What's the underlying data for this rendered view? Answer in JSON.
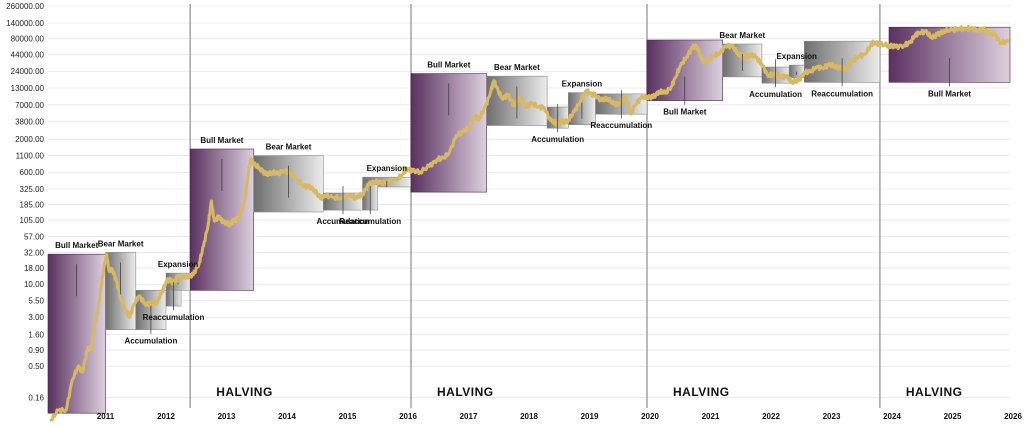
{
  "colors": {
    "bull": "#5a3060",
    "bull_fade": "#d7c8d8",
    "gray": "#7a7a7a",
    "gray_fade": "#e9e9e9",
    "price": "#d8b862",
    "halving_line": "#a8a8a8",
    "grid": "#dedede"
  },
  "chart_data": {
    "type": "line",
    "title": "",
    "xlabel": "",
    "ylabel": "",
    "y_scale": "log",
    "x_range": [
      2010.55,
      2026.45
    ],
    "ylim": [
      0.07,
      280000
    ],
    "y_ticks": [
      "260000.00",
      "140000.00",
      "80000.00",
      "44000.00",
      "24000.00",
      "13000.00",
      "7000.00",
      "3800.00",
      "2000.00",
      "1100.00",
      "600.00",
      "325.00",
      "185.00",
      "105.00",
      "57.00",
      "32.00",
      "18.00",
      "10.00",
      "5.50",
      "3.00",
      "1.60",
      "0.90",
      "0.50",
      "0.16"
    ],
    "x_ticks": [
      "2011",
      "2012",
      "2013",
      "2014",
      "2015",
      "2016",
      "2017",
      "2018",
      "2019",
      "2020",
      "2021",
      "2022",
      "2023",
      "2024",
      "2025",
      "2026"
    ],
    "halvings": [
      {
        "x": 2012.9,
        "label": "HALVING"
      },
      {
        "x": 2016.55,
        "label": "HALVING"
      },
      {
        "x": 2020.45,
        "label": "HALVING"
      },
      {
        "x": 2024.3,
        "label": "HALVING"
      }
    ],
    "phases": [
      {
        "label": "Bull Market",
        "type": "bull",
        "x0": 2010.55,
        "x1": 2011.5,
        "y0": 0.09,
        "y1": 30,
        "label_pos": "top"
      },
      {
        "label": "Bear Market",
        "type": "gray",
        "x0": 2011.5,
        "x1": 2012.0,
        "y0": 1.9,
        "y1": 32,
        "label_pos": "top"
      },
      {
        "label": "Accumulation",
        "type": "gray",
        "x0": 2012.0,
        "x1": 2012.5,
        "y0": 1.9,
        "y1": 8,
        "label_pos": "bottom"
      },
      {
        "label": "Reaccumulation",
        "type": "gray",
        "x0": 2012.5,
        "x1": 2012.75,
        "y0": 4.5,
        "y1": 11,
        "label_pos": "bottom"
      },
      {
        "label": "Expansion",
        "type": "gray",
        "x0": 2012.5,
        "x1": 2012.9,
        "y0": 8,
        "y1": 15,
        "label_pos": "top"
      },
      {
        "label": "Bull Market",
        "type": "bull",
        "x0": 2012.9,
        "x1": 2013.95,
        "y0": 8,
        "y1": 1400,
        "label_pos": "top"
      },
      {
        "label": "Bear Market",
        "type": "gray",
        "x0": 2013.95,
        "x1": 2015.1,
        "y0": 140,
        "y1": 1100,
        "label_pos": "top"
      },
      {
        "label": "Accumulation",
        "type": "gray",
        "x0": 2015.1,
        "x1": 2015.75,
        "y0": 150,
        "y1": 280,
        "label_pos": "bottom"
      },
      {
        "label": "Expansion",
        "type": "gray",
        "x0": 2015.75,
        "x1": 2016.55,
        "y0": 350,
        "y1": 500,
        "label_pos": "top"
      },
      {
        "label": "Reaccumulation",
        "type": "gray",
        "x0": 2015.75,
        "x1": 2016.0,
        "y0": 150,
        "y1": 380,
        "label_pos": "bottom"
      },
      {
        "label": "Bull Market",
        "type": "bull",
        "x0": 2016.55,
        "x1": 2017.8,
        "y0": 290,
        "y1": 22000,
        "label_pos": "top"
      },
      {
        "label": "Bear Market",
        "type": "gray",
        "x0": 2017.8,
        "x1": 2018.8,
        "y0": 3300,
        "y1": 20000,
        "label_pos": "top"
      },
      {
        "label": "Accumulation",
        "type": "gray",
        "x0": 2018.8,
        "x1": 2019.15,
        "y0": 3000,
        "y1": 6500,
        "label_pos": "bottom"
      },
      {
        "label": "Expansion",
        "type": "gray",
        "x0": 2019.15,
        "x1": 2019.6,
        "y0": 3400,
        "y1": 11000,
        "label_pos": "top"
      },
      {
        "label": "Reaccumulation",
        "type": "gray",
        "x0": 2019.6,
        "x1": 2020.45,
        "y0": 5000,
        "y1": 10500,
        "label_pos": "bottom"
      },
      {
        "label": "Bull Market",
        "type": "bull",
        "x0": 2020.45,
        "x1": 2021.7,
        "y0": 8200,
        "y1": 75000,
        "label_pos": "bottom"
      },
      {
        "label": "Bear Market",
        "type": "gray",
        "x0": 2021.7,
        "x1": 2022.35,
        "y0": 19500,
        "y1": 65000,
        "label_pos": "top"
      },
      {
        "label": "Accumulation",
        "type": "gray",
        "x0": 2022.35,
        "x1": 2022.8,
        "y0": 15500,
        "y1": 28000,
        "label_pos": "bottom"
      },
      {
        "label": "Expansion",
        "type": "gray",
        "x0": 2022.8,
        "x1": 2023.05,
        "y0": 19000,
        "y1": 30000,
        "label_pos": "top"
      },
      {
        "label": "Reaccumulation",
        "type": "gray",
        "x0": 2023.05,
        "x1": 2024.3,
        "y0": 16000,
        "y1": 72000,
        "label_pos": "bottom"
      },
      {
        "label": "Bull Market",
        "type": "bull",
        "x0": 2024.45,
        "x1": 2026.45,
        "y0": 16000,
        "y1": 120000,
        "label_pos": "bottom"
      }
    ],
    "series": [
      {
        "values": [
          [
            2010.6,
            0.07
          ],
          [
            2010.72,
            0.1
          ],
          [
            2010.85,
            0.1
          ],
          [
            2010.95,
            0.3
          ],
          [
            2011.05,
            0.5
          ],
          [
            2011.12,
            0.4
          ],
          [
            2011.2,
            0.9
          ],
          [
            2011.27,
            1.0
          ],
          [
            2011.33,
            2.5
          ],
          [
            2011.38,
            4
          ],
          [
            2011.42,
            8
          ],
          [
            2011.47,
            18
          ],
          [
            2011.52,
            30
          ],
          [
            2011.56,
            16
          ],
          [
            2011.62,
            17
          ],
          [
            2011.68,
            11
          ],
          [
            2011.75,
            6
          ],
          [
            2011.82,
            4
          ],
          [
            2011.9,
            3
          ],
          [
            2011.97,
            4.8
          ],
          [
            2012.05,
            6.5
          ],
          [
            2012.15,
            5
          ],
          [
            2012.25,
            4.8
          ],
          [
            2012.35,
            5.2
          ],
          [
            2012.42,
            7
          ],
          [
            2012.5,
            11
          ],
          [
            2012.58,
            12
          ],
          [
            2012.62,
            10
          ],
          [
            2012.7,
            14
          ],
          [
            2012.78,
            12.5
          ],
          [
            2012.86,
            13.5
          ],
          [
            2012.95,
            14
          ],
          [
            2013.05,
            22
          ],
          [
            2013.12,
            40
          ],
          [
            2013.2,
            90
          ],
          [
            2013.25,
            210
          ],
          [
            2013.3,
            100
          ],
          [
            2013.38,
            120
          ],
          [
            2013.45,
            95
          ],
          [
            2013.55,
            90
          ],
          [
            2013.62,
            100
          ],
          [
            2013.72,
            120
          ],
          [
            2013.8,
            200
          ],
          [
            2013.86,
            600
          ],
          [
            2013.9,
            1000
          ],
          [
            2013.95,
            800
          ],
          [
            2014.05,
            700
          ],
          [
            2014.15,
            550
          ],
          [
            2014.25,
            600
          ],
          [
            2014.35,
            560
          ],
          [
            2014.45,
            640
          ],
          [
            2014.55,
            580
          ],
          [
            2014.65,
            480
          ],
          [
            2014.75,
            380
          ],
          [
            2014.85,
            350
          ],
          [
            2014.95,
            320
          ],
          [
            2015.05,
            230
          ],
          [
            2015.12,
            260
          ],
          [
            2015.25,
            240
          ],
          [
            2015.4,
            230
          ],
          [
            2015.55,
            260
          ],
          [
            2015.65,
            230
          ],
          [
            2015.75,
            270
          ],
          [
            2015.85,
            380
          ],
          [
            2015.95,
            430
          ],
          [
            2016.05,
            400
          ],
          [
            2016.15,
            420
          ],
          [
            2016.3,
            450
          ],
          [
            2016.42,
            560
          ],
          [
            2016.48,
            700
          ],
          [
            2016.58,
            620
          ],
          [
            2016.7,
            610
          ],
          [
            2016.85,
            740
          ],
          [
            2016.98,
            960
          ],
          [
            2017.08,
            1000
          ],
          [
            2017.18,
            1200
          ],
          [
            2017.3,
            2300
          ],
          [
            2017.4,
            2600
          ],
          [
            2017.5,
            3000
          ],
          [
            2017.6,
            4500
          ],
          [
            2017.68,
            4300
          ],
          [
            2017.78,
            6500
          ],
          [
            2017.86,
            11000
          ],
          [
            2017.92,
            17000
          ],
          [
            2017.96,
            13500
          ],
          [
            2018.05,
            9000
          ],
          [
            2018.15,
            10000
          ],
          [
            2018.25,
            7000
          ],
          [
            2018.35,
            9000
          ],
          [
            2018.45,
            6500
          ],
          [
            2018.55,
            7500
          ],
          [
            2018.65,
            6500
          ],
          [
            2018.75,
            6400
          ],
          [
            2018.85,
            4000
          ],
          [
            2018.95,
            3600
          ],
          [
            2019.05,
            3700
          ],
          [
            2019.15,
            4000
          ],
          [
            2019.25,
            5500
          ],
          [
            2019.35,
            8000
          ],
          [
            2019.45,
            12000
          ],
          [
            2019.5,
            10500
          ],
          [
            2019.6,
            10000
          ],
          [
            2019.7,
            8200
          ],
          [
            2019.8,
            9000
          ],
          [
            2019.9,
            7200
          ],
          [
            2020.0,
            7500
          ],
          [
            2020.1,
            9500
          ],
          [
            2020.18,
            5000
          ],
          [
            2020.25,
            7000
          ],
          [
            2020.35,
            9000
          ],
          [
            2020.45,
            9500
          ],
          [
            2020.55,
            9200
          ],
          [
            2020.65,
            11500
          ],
          [
            2020.75,
            10800
          ],
          [
            2020.85,
            13500
          ],
          [
            2020.92,
            19000
          ],
          [
            2021.0,
            29000
          ],
          [
            2021.1,
            40000
          ],
          [
            2021.2,
            57000
          ],
          [
            2021.28,
            59000
          ],
          [
            2021.35,
            37000
          ],
          [
            2021.45,
            34000
          ],
          [
            2021.55,
            42000
          ],
          [
            2021.65,
            46000
          ],
          [
            2021.75,
            61000
          ],
          [
            2021.85,
            60000
          ],
          [
            2021.95,
            47000
          ],
          [
            2022.05,
            40000
          ],
          [
            2022.15,
            44000
          ],
          [
            2022.25,
            40000
          ],
          [
            2022.35,
            31000
          ],
          [
            2022.45,
            20000
          ],
          [
            2022.55,
            22000
          ],
          [
            2022.65,
            20000
          ],
          [
            2022.75,
            19500
          ],
          [
            2022.85,
            16500
          ],
          [
            2022.95,
            16800
          ],
          [
            2023.05,
            23000
          ],
          [
            2023.15,
            23500
          ],
          [
            2023.25,
            28000
          ],
          [
            2023.35,
            27000
          ],
          [
            2023.45,
            30000
          ],
          [
            2023.55,
            29500
          ],
          [
            2023.65,
            26500
          ],
          [
            2023.75,
            27000
          ],
          [
            2023.85,
            35000
          ],
          [
            2023.95,
            42000
          ],
          [
            2024.05,
            44000
          ],
          [
            2024.15,
            62000
          ],
          [
            2024.2,
            70000
          ],
          [
            2024.3,
            64000
          ],
          [
            2024.45,
            62000
          ],
          [
            2024.55,
            58000
          ],
          [
            2024.7,
            62000
          ],
          [
            2024.8,
            68000
          ],
          [
            2024.88,
            90000
          ],
          [
            2024.95,
            98000
          ],
          [
            2025.05,
            102000
          ],
          [
            2025.15,
            85000
          ],
          [
            2025.25,
            90000
          ],
          [
            2025.35,
            105000
          ],
          [
            2025.5,
            108000
          ],
          [
            2025.6,
            115000
          ],
          [
            2025.72,
            112000
          ],
          [
            2025.8,
            115000
          ],
          [
            2025.9,
            108000
          ],
          [
            2026.0,
            110000
          ],
          [
            2026.1,
            100000
          ],
          [
            2026.2,
            90000
          ],
          [
            2026.3,
            68000
          ],
          [
            2026.42,
            72000
          ]
        ]
      }
    ]
  }
}
